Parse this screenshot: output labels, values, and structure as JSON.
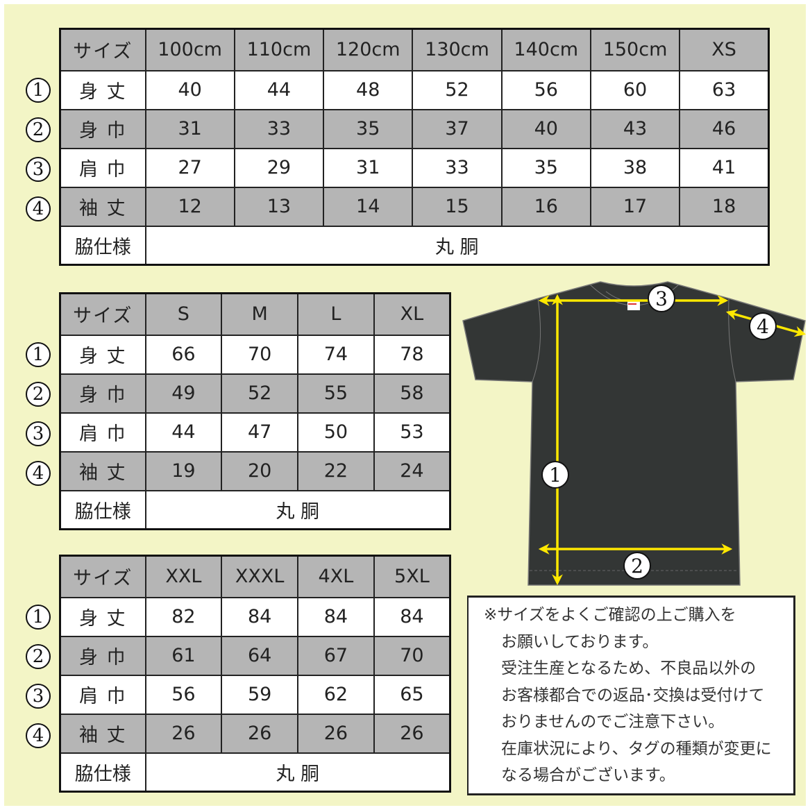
{
  "colors": {
    "background": "#f3f5c6",
    "row_gray": "#b5b5b5",
    "shirt": "#333635",
    "arrow": "#ffe800"
  },
  "tables": [
    {
      "header_label": "サイズ",
      "sizes": [
        "100cm",
        "110cm",
        "120cm",
        "130cm",
        "140cm",
        "150cm",
        "XS"
      ],
      "rows": [
        {
          "num": "1",
          "label": "身 丈",
          "values": [
            "40",
            "44",
            "48",
            "52",
            "56",
            "60",
            "63"
          ]
        },
        {
          "num": "2",
          "label": "身 巾",
          "values": [
            "31",
            "33",
            "35",
            "37",
            "40",
            "43",
            "46"
          ]
        },
        {
          "num": "3",
          "label": "肩 巾",
          "values": [
            "27",
            "29",
            "31",
            "33",
            "35",
            "38",
            "41"
          ]
        },
        {
          "num": "4",
          "label": "袖 丈",
          "values": [
            "12",
            "13",
            "14",
            "15",
            "16",
            "17",
            "18"
          ]
        }
      ],
      "footer": {
        "label": "脇仕様",
        "value": "丸 胴"
      }
    },
    {
      "header_label": "サイズ",
      "sizes": [
        "S",
        "M",
        "L",
        "XL"
      ],
      "rows": [
        {
          "num": "1",
          "label": "身 丈",
          "values": [
            "66",
            "70",
            "74",
            "78"
          ]
        },
        {
          "num": "2",
          "label": "身 巾",
          "values": [
            "49",
            "52",
            "55",
            "58"
          ]
        },
        {
          "num": "3",
          "label": "肩 巾",
          "values": [
            "44",
            "47",
            "50",
            "53"
          ]
        },
        {
          "num": "4",
          "label": "袖 丈",
          "values": [
            "19",
            "20",
            "22",
            "24"
          ]
        }
      ],
      "footer": {
        "label": "脇仕様",
        "value": "丸 胴"
      }
    },
    {
      "header_label": "サイズ",
      "sizes": [
        "XXL",
        "XXXL",
        "4XL",
        "5XL"
      ],
      "rows": [
        {
          "num": "1",
          "label": "身 丈",
          "values": [
            "82",
            "84",
            "84",
            "84"
          ]
        },
        {
          "num": "2",
          "label": "身 巾",
          "values": [
            "61",
            "64",
            "67",
            "70"
          ]
        },
        {
          "num": "3",
          "label": "肩 巾",
          "values": [
            "56",
            "59",
            "62",
            "65"
          ]
        },
        {
          "num": "4",
          "label": "袖 丈",
          "values": [
            "26",
            "26",
            "26",
            "26"
          ]
        }
      ],
      "footer": {
        "label": "脇仕様",
        "value": "丸 胴"
      }
    }
  ],
  "diagram": {
    "markers": [
      "1",
      "2",
      "3",
      "4"
    ]
  },
  "note": {
    "lines": [
      "※サイズをよくご確認の上ご購入を",
      "お願いしております。",
      "受注生産となるため、不良品以外の",
      "お客様都合での返品･交換は受付けて",
      "おりませんのでご注意下さい。",
      "在庫状況により、タグの種類が変更に",
      "なる場合がございます。"
    ]
  }
}
